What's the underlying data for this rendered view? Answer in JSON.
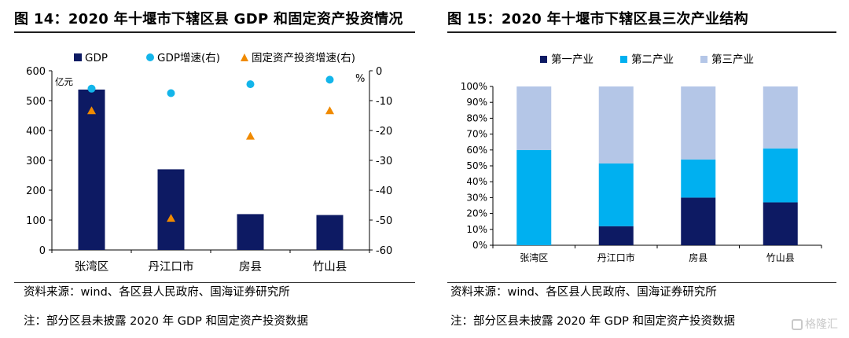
{
  "fig14": {
    "title": "图 14：2020 年十堰市下辖区县 GDP 和固定资产投资情况",
    "source": "资料来源：wind、各区县人民政府、国海证券研究所",
    "note": "注：部分区县未披露 2020 年 GDP 和固定资产投资数据",
    "legend": [
      "GDP",
      "GDP增速(右)",
      "固定资产投资增速(右)"
    ],
    "y_unit_left": "亿元",
    "y_unit_right": "%",
    "colors": {
      "bar": "#0d1a63",
      "dot": "#13b5ea",
      "triangle": "#f08a00"
    }
  },
  "fig15": {
    "title": "图 15：2020 年十堰市下辖区县三次产业结构",
    "source": "资料来源：wind、各区县人民政府、国海证券研究所",
    "note": "注：部分区县未披露 2020 年 GDP 和固定资产投资数据",
    "legend": [
      "第一产业",
      "第二产业",
      "第三产业"
    ],
    "colors": [
      "#0d1a63",
      "#00b0f0",
      "#b4c6e7"
    ]
  },
  "watermark": "格隆汇",
  "chart_data": [
    {
      "type": "bar",
      "categories": [
        "张湾区",
        "丹江口市",
        "房县",
        "竹山县"
      ],
      "series": [
        {
          "name": "GDP",
          "type": "bar",
          "axis": "left",
          "values": [
            537,
            270,
            120,
            117
          ]
        },
        {
          "name": "GDP增速(右)",
          "type": "scatter",
          "axis": "right",
          "values": [
            -6,
            -7.5,
            -4.5,
            -3
          ]
        },
        {
          "name": "固定资产投资增速(右)",
          "type": "scatter",
          "axis": "right",
          "values": [
            -13.5,
            -49.5,
            -22,
            -13.5
          ]
        }
      ],
      "ylim_left": [
        0,
        600
      ],
      "yticks_left": [
        0,
        100,
        200,
        300,
        400,
        500,
        600
      ],
      "ylim_right": [
        -60,
        0
      ],
      "yticks_right": [
        0,
        -10,
        -20,
        -30,
        -40,
        -50,
        -60
      ],
      "ylabel_left": "亿元",
      "ylabel_right": "%",
      "legend_position": "top"
    },
    {
      "type": "bar",
      "stacked": true,
      "categories": [
        "张湾区",
        "丹江口市",
        "房县",
        "竹山县"
      ],
      "series": [
        {
          "name": "第一产业",
          "values": [
            0,
            12,
            30,
            27
          ]
        },
        {
          "name": "第二产业",
          "values": [
            60,
            39.5,
            24,
            34
          ]
        },
        {
          "name": "第三产业",
          "values": [
            40,
            48.5,
            46,
            39
          ]
        }
      ],
      "ylim": [
        0,
        100
      ],
      "yticks": [
        "0%",
        "10%",
        "20%",
        "30%",
        "40%",
        "50%",
        "60%",
        "70%",
        "80%",
        "90%",
        "100%"
      ],
      "legend_position": "top"
    }
  ]
}
